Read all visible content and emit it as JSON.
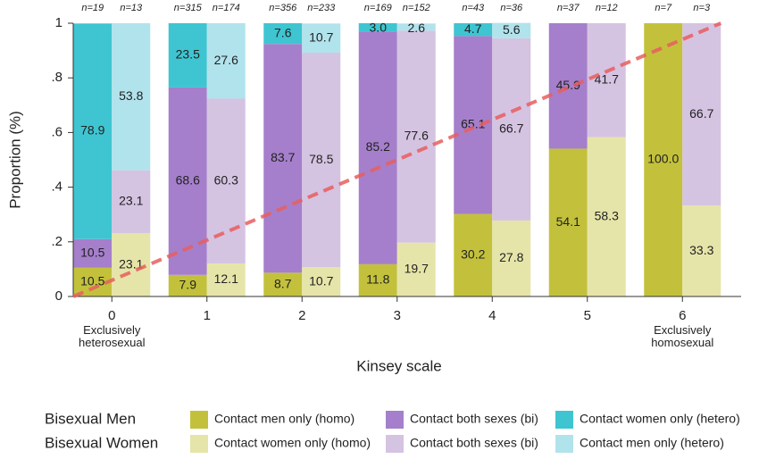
{
  "chart_data": {
    "type": "stacked-paired-bar",
    "categories": [
      "0",
      "1",
      "2",
      "3",
      "4",
      "5",
      "6"
    ],
    "category_notes": [
      "Exclusively heterosexual",
      null,
      null,
      null,
      null,
      null,
      "Exclusively homosexual"
    ],
    "y_label": "Proportion (%)",
    "x_label": "Kinsey scale",
    "ylim": [
      0,
      1
    ],
    "yticks": [
      0,
      {
        "value": 0.2,
        "label": ".2"
      },
      {
        "value": 0.4,
        "label": ".4"
      },
      {
        "value": 0.6,
        "label": ".6"
      },
      {
        "value": 0.8,
        "label": ".8"
      },
      1
    ],
    "reference_line_color": "#e85f5f",
    "groups": [
      {
        "name": "Bisexual Men",
        "n_labels": [
          "n=19",
          "n=315",
          "n=356",
          "n=169",
          "n=43",
          "n=37",
          "n=7"
        ],
        "series": [
          {
            "name": "Contact men only (homo)",
            "color": "#c3c13c",
            "values": [
              0.105,
              0.079,
              0.087,
              0.118,
              0.302,
              0.541,
              1.0
            ],
            "value_labels": [
              "10.5",
              "7.9",
              "8.7",
              "11.8",
              "30.2",
              "54.1",
              "100.0"
            ]
          },
          {
            "name": "Contact both sexes (bi)",
            "color": "#a57fcb",
            "values": [
              0.105,
              0.686,
              0.837,
              0.852,
              0.651,
              0.459,
              null
            ],
            "value_labels": [
              "10.5",
              "68.6",
              "83.7",
              "85.2",
              "65.1",
              "45.9",
              null
            ]
          },
          {
            "name": "Contact women only (hetero)",
            "color": "#3ec5d1",
            "values": [
              0.789,
              0.235,
              0.076,
              0.03,
              0.047,
              null,
              null
            ],
            "value_labels": [
              "78.9",
              "23.5",
              "7.6",
              "3.0",
              "4.7",
              null,
              null
            ]
          }
        ]
      },
      {
        "name": "Bisexual Women",
        "n_labels": [
          "n=13",
          "n=174",
          "n=233",
          "n=152",
          "n=36",
          "n=12",
          "n=3"
        ],
        "series": [
          {
            "name": "Contact women only (homo)",
            "color": "#e6e5a9",
            "values": [
              0.231,
              0.121,
              0.107,
              0.197,
              0.278,
              0.583,
              0.333
            ],
            "value_labels": [
              "23.1",
              "12.1",
              "10.7",
              "19.7",
              "27.8",
              "58.3",
              "33.3"
            ]
          },
          {
            "name": "Contact both sexes (bi)",
            "color": "#d5c3e2",
            "values": [
              0.231,
              0.603,
              0.785,
              0.776,
              0.667,
              0.417,
              0.667
            ],
            "value_labels": [
              "23.1",
              "60.3",
              "78.5",
              "77.6",
              "66.7",
              "41.7",
              "66.7"
            ]
          },
          {
            "name": "Contact men only (hetero)",
            "color": "#b1e3ec",
            "values": [
              0.538,
              0.276,
              0.107,
              0.026,
              0.056,
              null,
              null
            ],
            "value_labels": [
              "53.8",
              "27.6",
              "10.7",
              "2.6",
              "5.6",
              null,
              null
            ]
          }
        ]
      }
    ]
  }
}
